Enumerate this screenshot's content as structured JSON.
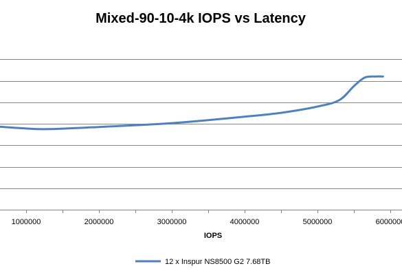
{
  "chart_data": {
    "type": "line",
    "title": "Mixed-90-10-4k IOPS vs Latency",
    "xlabel": "IOPS",
    "ylabel": "",
    "xlim": [
      0,
      6000000
    ],
    "ylim": [
      0,
      8
    ],
    "x_tick_values": [
      1000000,
      2000000,
      3000000,
      4000000,
      5000000,
      6000000
    ],
    "x_tick_labels": [
      "1000000",
      "2000000",
      "3000000",
      "4000000",
      "5000000",
      "6000000"
    ],
    "y_gridlines": [
      1,
      2,
      3,
      4,
      5,
      6,
      7
    ],
    "grid": "horizontal",
    "legend_position": "bottom",
    "series": [
      {
        "name": "12 x Inspur NS8500 G2 7.68TB",
        "color": "#4f81bd",
        "points": [
          {
            "x": 500000,
            "y": 3.9
          },
          {
            "x": 1000000,
            "y": 3.78
          },
          {
            "x": 1300000,
            "y": 3.75
          },
          {
            "x": 2000000,
            "y": 3.85
          },
          {
            "x": 3000000,
            "y": 4.03
          },
          {
            "x": 4000000,
            "y": 4.33
          },
          {
            "x": 4500000,
            "y": 4.51
          },
          {
            "x": 5000000,
            "y": 4.8
          },
          {
            "x": 5300000,
            "y": 5.1
          },
          {
            "x": 5500000,
            "y": 5.75
          },
          {
            "x": 5650000,
            "y": 6.15
          },
          {
            "x": 5800000,
            "y": 6.2
          },
          {
            "x": 5900000,
            "y": 6.2
          }
        ]
      }
    ]
  }
}
